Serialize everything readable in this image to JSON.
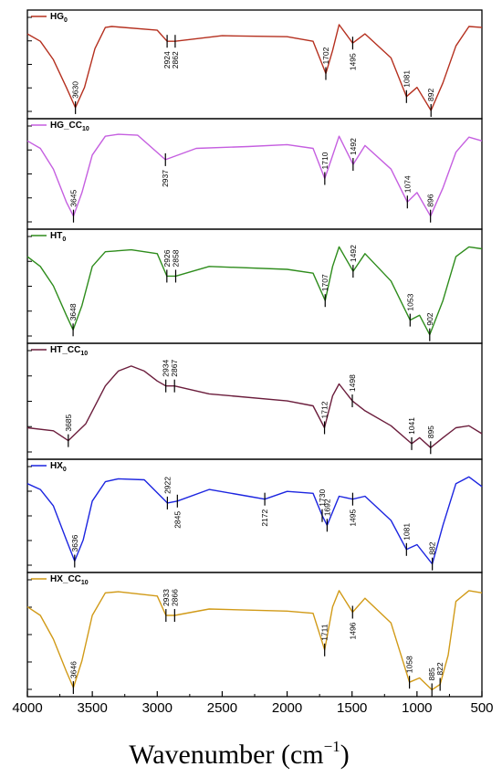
{
  "chart_data": {
    "type": "line",
    "xlabel": "Wavenumber (cm⁻¹)",
    "xlabel_main": "Wavenumber (cm",
    "xlabel_sup": "−1",
    "xlabel_close": ")",
    "xlim": [
      4000,
      500
    ],
    "x_ticks": [
      4000,
      3500,
      3000,
      2500,
      2000,
      1500,
      1000,
      500
    ],
    "x_tick_labels": [
      "4000",
      "3500",
      "3000",
      "2500",
      "2000",
      "1500",
      "1000",
      "500"
    ],
    "y_ticks_visible": true,
    "y_tick_labels_visible": false,
    "panels": [
      {
        "legend_base": "HG",
        "legend_sub": "0",
        "color": "#b5301f",
        "x": [
          4000,
          3900,
          3800,
          3700,
          3630,
          3560,
          3480,
          3400,
          3350,
          3000,
          2924,
          2862,
          2500,
          2000,
          1800,
          1702,
          1650,
          1600,
          1495,
          1400,
          1200,
          1081,
          1000,
          892,
          800,
          700,
          600,
          500
        ],
        "y": [
          0.88,
          0.8,
          0.6,
          0.3,
          0.08,
          0.3,
          0.72,
          0.95,
          0.96,
          0.92,
          0.8,
          0.8,
          0.86,
          0.85,
          0.8,
          0.45,
          0.7,
          0.98,
          0.78,
          0.88,
          0.62,
          0.2,
          0.3,
          0.05,
          0.35,
          0.75,
          0.96,
          0.95
        ],
        "annotations": [
          {
            "x": 3630,
            "label": "3630"
          },
          {
            "x": 2924,
            "label": "2924"
          },
          {
            "x": 2862,
            "label": "2862"
          },
          {
            "x": 1702,
            "label": "1702"
          },
          {
            "x": 1495,
            "label": "1495"
          },
          {
            "x": 1081,
            "label": "1081"
          },
          {
            "x": 892,
            "label": "892"
          }
        ]
      },
      {
        "legend_base": "HG_CC",
        "legend_sub": "10",
        "color": "#c55fe0",
        "x": [
          4000,
          3900,
          3800,
          3700,
          3645,
          3580,
          3500,
          3400,
          3300,
          3150,
          2937,
          2700,
          2300,
          2000,
          1800,
          1710,
          1660,
          1600,
          1492,
          1400,
          1200,
          1074,
          1000,
          896,
          800,
          700,
          600,
          500
        ],
        "y": [
          0.9,
          0.82,
          0.6,
          0.25,
          0.1,
          0.35,
          0.75,
          0.95,
          0.97,
          0.96,
          0.7,
          0.82,
          0.84,
          0.86,
          0.82,
          0.5,
          0.7,
          0.95,
          0.65,
          0.85,
          0.6,
          0.25,
          0.35,
          0.1,
          0.4,
          0.78,
          0.94,
          0.9
        ],
        "annotations": [
          {
            "x": 3645,
            "label": "3645"
          },
          {
            "x": 2937,
            "label": "2937"
          },
          {
            "x": 1710,
            "label": "1710"
          },
          {
            "x": 1492,
            "label": "1492"
          },
          {
            "x": 1074,
            "label": "1074"
          },
          {
            "x": 896,
            "label": "896"
          }
        ]
      },
      {
        "legend_base": "HT",
        "legend_sub": "0",
        "color": "#2e8c1c",
        "x": [
          4000,
          3900,
          3800,
          3700,
          3648,
          3580,
          3500,
          3400,
          3200,
          3000,
          2926,
          2858,
          2600,
          2000,
          1800,
          1707,
          1650,
          1600,
          1492,
          1400,
          1200,
          1053,
          980,
          902,
          800,
          700,
          600,
          500
        ],
        "y": [
          0.85,
          0.75,
          0.55,
          0.25,
          0.1,
          0.35,
          0.75,
          0.9,
          0.92,
          0.88,
          0.65,
          0.65,
          0.75,
          0.72,
          0.68,
          0.4,
          0.75,
          0.95,
          0.7,
          0.88,
          0.6,
          0.2,
          0.25,
          0.05,
          0.4,
          0.85,
          0.95,
          0.93
        ],
        "annotations": [
          {
            "x": 3648,
            "label": "3648"
          },
          {
            "x": 2926,
            "label": "2926"
          },
          {
            "x": 2858,
            "label": "2858"
          },
          {
            "x": 1707,
            "label": "1707"
          },
          {
            "x": 1492,
            "label": "1492"
          },
          {
            "x": 1053,
            "label": "1053"
          },
          {
            "x": 902,
            "label": "902"
          }
        ]
      },
      {
        "legend_base": "HT_CC",
        "legend_sub": "10",
        "color": "#6b1d3c",
        "x": [
          4000,
          3800,
          3685,
          3550,
          3400,
          3300,
          3200,
          3100,
          3000,
          2934,
          2867,
          2600,
          2000,
          1800,
          1712,
          1650,
          1600,
          1498,
          1400,
          1200,
          1041,
          980,
          895,
          800,
          700,
          600,
          500
        ],
        "y": [
          0.28,
          0.25,
          0.15,
          0.32,
          0.7,
          0.85,
          0.9,
          0.85,
          0.75,
          0.7,
          0.7,
          0.62,
          0.55,
          0.5,
          0.28,
          0.6,
          0.72,
          0.55,
          0.45,
          0.3,
          0.12,
          0.18,
          0.08,
          0.18,
          0.28,
          0.3,
          0.22
        ],
        "annotations": [
          {
            "x": 3685,
            "label": "3685"
          },
          {
            "x": 2934,
            "label": "2934"
          },
          {
            "x": 2867,
            "label": "2867"
          },
          {
            "x": 1712,
            "label": "1712"
          },
          {
            "x": 1498,
            "label": "1498"
          },
          {
            "x": 1041,
            "label": "1041"
          },
          {
            "x": 895,
            "label": "895"
          }
        ]
      },
      {
        "legend_base": "HX",
        "legend_sub": "0",
        "color": "#1c25e0",
        "x": [
          4000,
          3900,
          3800,
          3700,
          3636,
          3570,
          3500,
          3400,
          3300,
          3100,
          2922,
          2845,
          2600,
          2300,
          2172,
          2000,
          1800,
          1730,
          1692,
          1600,
          1495,
          1400,
          1200,
          1081,
          1000,
          882,
          800,
          700,
          600,
          500
        ],
        "y": [
          0.88,
          0.82,
          0.65,
          0.3,
          0.08,
          0.3,
          0.7,
          0.9,
          0.93,
          0.92,
          0.68,
          0.7,
          0.82,
          0.75,
          0.72,
          0.8,
          0.78,
          0.55,
          0.45,
          0.75,
          0.72,
          0.75,
          0.5,
          0.2,
          0.25,
          0.05,
          0.45,
          0.88,
          0.95,
          0.85
        ],
        "annotations": [
          {
            "x": 3636,
            "label": "3636"
          },
          {
            "x": 2922,
            "label": "2922"
          },
          {
            "x": 2845,
            "label": "2845"
          },
          {
            "x": 2172,
            "label": "2172"
          },
          {
            "x": 1730,
            "label": "1730"
          },
          {
            "x": 1692,
            "label": "1692"
          },
          {
            "x": 1495,
            "label": "1495"
          },
          {
            "x": 1081,
            "label": "1081"
          },
          {
            "x": 882,
            "label": "882"
          }
        ]
      },
      {
        "legend_base": "HX_CC",
        "legend_sub": "10",
        "color": "#d19a17",
        "x": [
          4000,
          3900,
          3800,
          3700,
          3646,
          3580,
          3500,
          3400,
          3300,
          3000,
          2933,
          2866,
          2600,
          2000,
          1800,
          1711,
          1650,
          1600,
          1496,
          1400,
          1200,
          1058,
          980,
          885,
          822,
          760,
          700,
          600,
          500
        ],
        "y": [
          0.8,
          0.72,
          0.5,
          0.2,
          0.05,
          0.3,
          0.72,
          0.93,
          0.94,
          0.9,
          0.72,
          0.72,
          0.78,
          0.76,
          0.74,
          0.4,
          0.8,
          0.95,
          0.75,
          0.88,
          0.65,
          0.1,
          0.14,
          0.03,
          0.08,
          0.35,
          0.85,
          0.95,
          0.93
        ],
        "annotations": [
          {
            "x": 3646,
            "label": "3646"
          },
          {
            "x": 2933,
            "label": "2933"
          },
          {
            "x": 2866,
            "label": "2866"
          },
          {
            "x": 1711,
            "label": "1711"
          },
          {
            "x": 1496,
            "label": "1496"
          },
          {
            "x": 1058,
            "label": "1058"
          },
          {
            "x": 885,
            "label": "885"
          },
          {
            "x": 822,
            "label": "822"
          }
        ]
      }
    ]
  }
}
